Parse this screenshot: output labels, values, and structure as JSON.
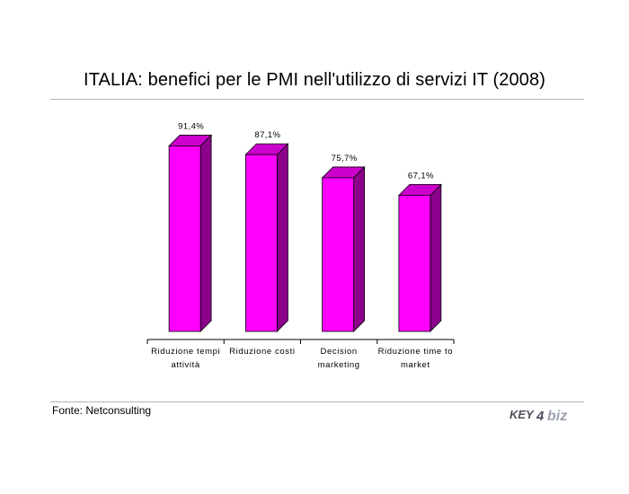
{
  "title": "ITALIA: benefici per le PMI nell'utilizzo di servizi IT (2008)",
  "source": "Fonte: Netconsulting",
  "logo": {
    "icon": "key4biz-logo",
    "part1": "KEY",
    "part2": "4",
    "part3": "biz",
    "color_dark": "#4a4f5c",
    "color_light": "#9ca3ae"
  },
  "chart_data": {
    "type": "bar",
    "categories": [
      [
        "Riduzione tempi",
        "attività"
      ],
      [
        "Riduzione costi"
      ],
      [
        "Decision",
        "marketing"
      ],
      [
        "Riduzione time to",
        "market"
      ]
    ],
    "values": [
      91.4,
      87.1,
      75.7,
      67.1
    ],
    "value_labels": [
      "91,4%",
      "87,1%",
      "75,7%",
      "67,1%"
    ],
    "ylim": [
      0,
      100
    ],
    "grid": false,
    "legend": "none",
    "style": "3d",
    "colors": {
      "front": "#ff00ff",
      "side": "#8c008c",
      "top": "#cc00cc",
      "outline": "#000000"
    }
  }
}
